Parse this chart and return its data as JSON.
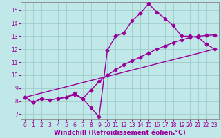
{
  "xlabel": "Windchill (Refroidissement éolien,°C)",
  "bg_color": "#c0e8e8",
  "grid_color": "#a0cccc",
  "line_color": "#990099",
  "xlim": [
    -0.5,
    23.5
  ],
  "ylim": [
    6.6,
    15.6
  ],
  "xticks": [
    0,
    1,
    2,
    3,
    4,
    5,
    6,
    7,
    8,
    9,
    10,
    11,
    12,
    13,
    14,
    15,
    16,
    17,
    18,
    19,
    20,
    21,
    22,
    23
  ],
  "yticks": [
    7,
    8,
    9,
    10,
    11,
    12,
    13,
    14,
    15
  ],
  "line1_x": [
    0,
    1,
    2,
    3,
    4,
    5,
    6,
    7,
    8,
    9,
    10,
    11,
    12,
    13,
    14,
    15,
    16,
    17,
    18,
    19,
    20,
    21,
    22,
    23
  ],
  "line1_y": [
    8.3,
    7.9,
    8.2,
    8.1,
    8.2,
    8.3,
    8.6,
    8.2,
    7.5,
    6.8,
    11.9,
    13.0,
    13.25,
    14.2,
    14.75,
    15.5,
    14.85,
    14.35,
    13.8,
    13.0,
    13.0,
    12.9,
    12.4,
    12.0
  ],
  "line2_x": [
    0,
    1,
    2,
    3,
    4,
    5,
    6,
    7,
    8,
    9,
    10,
    11,
    12,
    13,
    14,
    15,
    16,
    17,
    18,
    19,
    20,
    21,
    22,
    23
  ],
  "line2_y": [
    8.3,
    7.9,
    8.2,
    8.1,
    8.2,
    8.3,
    8.5,
    8.2,
    8.85,
    9.5,
    10.0,
    10.4,
    10.8,
    11.1,
    11.4,
    11.7,
    12.0,
    12.25,
    12.5,
    12.7,
    12.9,
    13.0,
    13.05,
    13.1
  ],
  "line3_x": [
    0,
    23
  ],
  "line3_y": [
    8.3,
    12.0
  ],
  "marker": "D",
  "marker_size": 2.5,
  "line_width": 1.0,
  "xlabel_fontsize": 6.5,
  "tick_fontsize": 5.5,
  "tick_color": "#990099",
  "xlabel_color": "#990099",
  "spine_color": "#888888"
}
